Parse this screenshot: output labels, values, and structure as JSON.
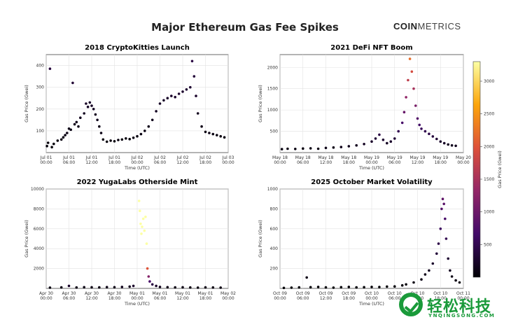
{
  "title": "Major Ethereum Gas Fee Spikes",
  "logo": {
    "strong": "COIN",
    "light": "METRICS"
  },
  "watermark": {
    "text": "轻松科技",
    "sub": "YNQINGSONG.COM"
  },
  "colorbar": {
    "label": "Gas Price (Gwei)",
    "min": 0,
    "max": 3300,
    "ticks": [
      500,
      1000,
      1500,
      2000,
      2500,
      3000
    ],
    "colors": [
      "#000004",
      "#420a68",
      "#932667",
      "#dd513a",
      "#fca50a",
      "#fcffa4"
    ]
  },
  "chart_data": [
    {
      "type": "scatter",
      "title": "2018 CryptoKitties Launch",
      "xlabel": "Time (UTC)",
      "ylabel": "Gas Price (Gwei)",
      "ylim": [
        0,
        450
      ],
      "yticks": [
        100,
        200,
        300,
        400
      ],
      "xticks": [
        {
          "l1": "Jul 01",
          "l2": "00:00"
        },
        {
          "l1": "Jul 01",
          "l2": "06:00"
        },
        {
          "l1": "Jul 01",
          "l2": "12:00"
        },
        {
          "l1": "Jul 01",
          "l2": "18:00"
        },
        {
          "l1": "Jul 02",
          "l2": "00:00"
        },
        {
          "l1": "Jul 02",
          "l2": "06:00"
        },
        {
          "l1": "Jul 02",
          "l2": "12:00"
        },
        {
          "l1": "Jul 02",
          "l2": "18:00"
        },
        {
          "l1": "Jul 03",
          "l2": "00:00"
        }
      ],
      "x_hours": [
        0,
        48
      ],
      "points": [
        [
          0.2,
          30
        ],
        [
          0.5,
          45
        ],
        [
          1,
          385
        ],
        [
          1.5,
          25
        ],
        [
          2,
          40
        ],
        [
          3,
          55
        ],
        [
          4,
          60
        ],
        [
          4.5,
          70
        ],
        [
          5,
          80
        ],
        [
          5.5,
          90
        ],
        [
          6,
          110
        ],
        [
          6.5,
          105
        ],
        [
          7,
          320
        ],
        [
          7.5,
          130
        ],
        [
          8,
          140
        ],
        [
          8.5,
          120
        ],
        [
          9,
          160
        ],
        [
          10,
          180
        ],
        [
          10.5,
          225
        ],
        [
          11,
          210
        ],
        [
          11.5,
          230
        ],
        [
          12,
          215
        ],
        [
          12.5,
          200
        ],
        [
          13,
          175
        ],
        [
          13.5,
          150
        ],
        [
          14,
          120
        ],
        [
          14.5,
          90
        ],
        [
          15,
          60
        ],
        [
          16,
          50
        ],
        [
          17,
          55
        ],
        [
          18,
          52
        ],
        [
          19,
          58
        ],
        [
          20,
          60
        ],
        [
          21,
          65
        ],
        [
          22,
          62
        ],
        [
          23,
          68
        ],
        [
          24,
          75
        ],
        [
          25,
          85
        ],
        [
          26,
          100
        ],
        [
          27,
          120
        ],
        [
          28,
          150
        ],
        [
          29,
          190
        ],
        [
          30,
          225
        ],
        [
          31,
          240
        ],
        [
          32,
          250
        ],
        [
          33,
          260
        ],
        [
          34,
          255
        ],
        [
          35,
          270
        ],
        [
          36,
          280
        ],
        [
          37,
          290
        ],
        [
          38,
          300
        ],
        [
          38.5,
          420
        ],
        [
          39,
          350
        ],
        [
          39.5,
          260
        ],
        [
          40,
          180
        ],
        [
          41,
          120
        ],
        [
          42,
          95
        ],
        [
          43,
          90
        ],
        [
          44,
          85
        ],
        [
          45,
          80
        ],
        [
          46,
          75
        ],
        [
          47,
          70
        ]
      ]
    },
    {
      "type": "scatter",
      "title": "2021 DeFi NFT Boom",
      "xlabel": "Time (UTC)",
      "ylabel": "Gas Price (Gwei)",
      "ylim": [
        0,
        2300
      ],
      "yticks": [
        500,
        1000,
        1500,
        2000
      ],
      "xticks": [
        {
          "l1": "May 18",
          "l2": "00:00"
        },
        {
          "l1": "May 18",
          "l2": "06:00"
        },
        {
          "l1": "May 18",
          "l2": "12:00"
        },
        {
          "l1": "May 18",
          "l2": "18:00"
        },
        {
          "l1": "May 19",
          "l2": "00:00"
        },
        {
          "l1": "May 19",
          "l2": "06:00"
        },
        {
          "l1": "May 19",
          "l2": "12:00"
        },
        {
          "l1": "May 19",
          "l2": "18:00"
        },
        {
          "l1": "May 20",
          "l2": "00:00"
        }
      ],
      "x_hours": [
        0,
        48
      ],
      "points": [
        [
          0.5,
          80
        ],
        [
          2,
          90
        ],
        [
          4,
          85
        ],
        [
          6,
          95
        ],
        [
          8,
          100
        ],
        [
          10,
          90
        ],
        [
          12,
          110
        ],
        [
          14,
          120
        ],
        [
          16,
          130
        ],
        [
          18,
          150
        ],
        [
          20,
          170
        ],
        [
          22,
          200
        ],
        [
          24,
          260
        ],
        [
          25,
          330
        ],
        [
          26,
          420
        ],
        [
          27,
          300
        ],
        [
          28,
          220
        ],
        [
          29,
          260
        ],
        [
          30,
          330
        ],
        [
          31,
          500
        ],
        [
          32,
          700
        ],
        [
          32.5,
          950
        ],
        [
          33,
          1300
        ],
        [
          33.5,
          1700
        ],
        [
          34,
          2200
        ],
        [
          34.5,
          1900
        ],
        [
          35,
          1500
        ],
        [
          35.5,
          1100
        ],
        [
          36,
          800
        ],
        [
          36.5,
          650
        ],
        [
          37,
          560
        ],
        [
          38,
          500
        ],
        [
          39,
          440
        ],
        [
          40,
          380
        ],
        [
          41,
          320
        ],
        [
          42,
          260
        ],
        [
          43,
          220
        ],
        [
          44,
          190
        ],
        [
          45,
          170
        ],
        [
          46,
          160
        ]
      ]
    },
    {
      "type": "scatter",
      "title": "2022 YugaLabs Otherside Mint",
      "xlabel": "Time (UTC)",
      "ylabel": "Gas Price (Gwei)",
      "ylim": [
        0,
        10000
      ],
      "yticks": [
        2000,
        4000,
        6000,
        8000,
        10000
      ],
      "xticks": [
        {
          "l1": "Apr 30",
          "l2": "00:00"
        },
        {
          "l1": "Apr 30",
          "l2": "06:00"
        },
        {
          "l1": "Apr 30",
          "l2": "12:00"
        },
        {
          "l1": "Apr 30",
          "l2": "18:00"
        },
        {
          "l1": "May 01",
          "l2": "00:00"
        },
        {
          "l1": "May 01",
          "l2": "06:00"
        },
        {
          "l1": "May 01",
          "l2": "12:00"
        },
        {
          "l1": "May 01",
          "l2": "18:00"
        },
        {
          "l1": "May 02",
          "l2": "00:00"
        }
      ],
      "x_hours": [
        0,
        48
      ],
      "points": [
        [
          1,
          80
        ],
        [
          4,
          100
        ],
        [
          6,
          250
        ],
        [
          8,
          90
        ],
        [
          10,
          120
        ],
        [
          12,
          110
        ],
        [
          14,
          100
        ],
        [
          16,
          130
        ],
        [
          18,
          120
        ],
        [
          20,
          150
        ],
        [
          22,
          180
        ],
        [
          23,
          250
        ],
        [
          24.5,
          8800
        ],
        [
          24.7,
          7800
        ],
        [
          24.9,
          6500
        ],
        [
          25.1,
          5500
        ],
        [
          25.3,
          6200
        ],
        [
          25.6,
          7000
        ],
        [
          25.9,
          5800
        ],
        [
          26.2,
          7200
        ],
        [
          26.5,
          4500
        ],
        [
          26.7,
          2000
        ],
        [
          27,
          1200
        ],
        [
          27.3,
          700
        ],
        [
          28,
          400
        ],
        [
          29,
          250
        ],
        [
          30,
          150
        ],
        [
          32,
          120
        ],
        [
          34,
          100
        ],
        [
          36,
          110
        ],
        [
          38,
          90
        ],
        [
          40,
          80
        ],
        [
          42,
          100
        ],
        [
          44,
          90
        ],
        [
          46,
          80
        ]
      ]
    },
    {
      "type": "scatter",
      "title": "2025 October Market Volatility",
      "xlabel": "Time (UTC)",
      "ylabel": "Gas Price (Gwei)",
      "ylim": [
        0,
        1000
      ],
      "yticks": [
        200,
        400,
        600,
        800,
        1000
      ],
      "xticks": [
        {
          "l1": "Oct 09",
          "l2": "00:00"
        },
        {
          "l1": "Oct 09",
          "l2": "06:00"
        },
        {
          "l1": "Oct 09",
          "l2": "12:00"
        },
        {
          "l1": "Oct 09",
          "l2": "18:00"
        },
        {
          "l1": "Oct 10",
          "l2": "00:00"
        },
        {
          "l1": "Oct 10",
          "l2": "06:00"
        },
        {
          "l1": "Oct 10",
          "l2": "12:00"
        },
        {
          "l1": "Oct 10",
          "l2": "18:00"
        },
        {
          "l1": "Oct 11",
          "l2": "00:00"
        }
      ],
      "x_hours": [
        0,
        48
      ],
      "points": [
        [
          1,
          5
        ],
        [
          3,
          8
        ],
        [
          5,
          10
        ],
        [
          7,
          110
        ],
        [
          8,
          12
        ],
        [
          10,
          15
        ],
        [
          12,
          10
        ],
        [
          14,
          8
        ],
        [
          16,
          12
        ],
        [
          18,
          15
        ],
        [
          20,
          10
        ],
        [
          22,
          12
        ],
        [
          24,
          15
        ],
        [
          26,
          14
        ],
        [
          28,
          18
        ],
        [
          30,
          20
        ],
        [
          32,
          30
        ],
        [
          33,
          40
        ],
        [
          35,
          60
        ],
        [
          37,
          90
        ],
        [
          38,
          140
        ],
        [
          39,
          180
        ],
        [
          40,
          250
        ],
        [
          41,
          350
        ],
        [
          41.5,
          450
        ],
        [
          42,
          600
        ],
        [
          42.3,
          800
        ],
        [
          42.6,
          900
        ],
        [
          42.9,
          850
        ],
        [
          43.2,
          700
        ],
        [
          43.5,
          500
        ],
        [
          44,
          300
        ],
        [
          44.5,
          180
        ],
        [
          45,
          120
        ],
        [
          46,
          80
        ],
        [
          47,
          60
        ]
      ]
    }
  ]
}
